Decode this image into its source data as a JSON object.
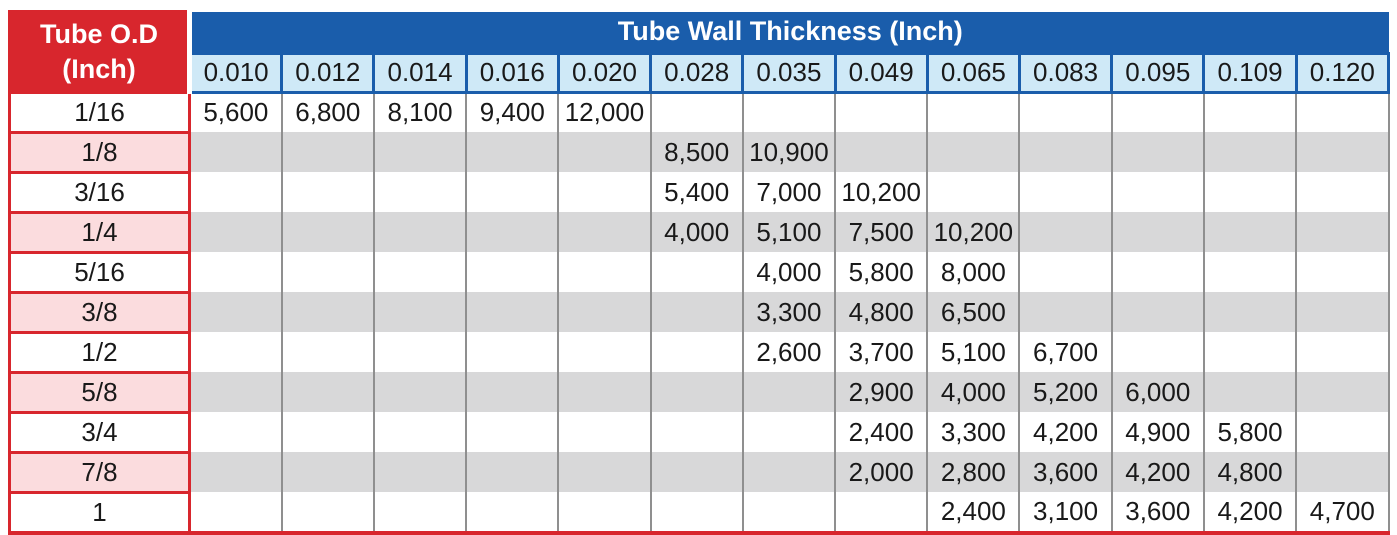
{
  "chart_data": {
    "type": "table",
    "corner_header": {
      "line1": "Tube O.D",
      "line2": "(Inch)"
    },
    "main_header": "Tube Wall Thickness (Inch)",
    "thickness_columns": [
      "0.010",
      "0.012",
      "0.014",
      "0.016",
      "0.020",
      "0.028",
      "0.035",
      "0.049",
      "0.065",
      "0.083",
      "0.095",
      "0.109",
      "0.120"
    ],
    "rows": [
      {
        "od": "1/16",
        "values": [
          "5,600",
          "6,800",
          "8,100",
          "9,400",
          "12,000",
          "",
          "",
          "",
          "",
          "",
          "",
          "",
          ""
        ]
      },
      {
        "od": "1/8",
        "values": [
          "",
          "",
          "",
          "",
          "",
          "8,500",
          "10,900",
          "",
          "",
          "",
          "",
          "",
          ""
        ]
      },
      {
        "od": "3/16",
        "values": [
          "",
          "",
          "",
          "",
          "",
          "5,400",
          "7,000",
          "10,200",
          "",
          "",
          "",
          "",
          ""
        ]
      },
      {
        "od": "1/4",
        "values": [
          "",
          "",
          "",
          "",
          "",
          "4,000",
          "5,100",
          "7,500",
          "10,200",
          "",
          "",
          "",
          ""
        ]
      },
      {
        "od": "5/16",
        "values": [
          "",
          "",
          "",
          "",
          "",
          "",
          "4,000",
          "5,800",
          "8,000",
          "",
          "",
          "",
          ""
        ]
      },
      {
        "od": "3/8",
        "values": [
          "",
          "",
          "",
          "",
          "",
          "",
          "3,300",
          "4,800",
          "6,500",
          "",
          "",
          "",
          ""
        ]
      },
      {
        "od": "1/2",
        "values": [
          "",
          "",
          "",
          "",
          "",
          "",
          "2,600",
          "3,700",
          "5,100",
          "6,700",
          "",
          "",
          ""
        ]
      },
      {
        "od": "5/8",
        "values": [
          "",
          "",
          "",
          "",
          "",
          "",
          "",
          "2,900",
          "4,000",
          "5,200",
          "6,000",
          "",
          ""
        ]
      },
      {
        "od": "3/4",
        "values": [
          "",
          "",
          "",
          "",
          "",
          "",
          "",
          "2,400",
          "3,300",
          "4,200",
          "4,900",
          "5,800",
          ""
        ]
      },
      {
        "od": "7/8",
        "values": [
          "",
          "",
          "",
          "",
          "",
          "",
          "",
          "2,000",
          "2,800",
          "3,600",
          "4,200",
          "4,800",
          ""
        ]
      },
      {
        "od": "1",
        "values": [
          "",
          "",
          "",
          "",
          "",
          "",
          "",
          "",
          "2,400",
          "3,100",
          "3,600",
          "4,200",
          "4,700"
        ]
      }
    ]
  },
  "colors": {
    "red": "#d8262d",
    "blue": "#1a5dab",
    "lightblue": "#cfe9f7",
    "pink": "#fbdcde",
    "stripe": "#d8d8d9",
    "bordergray": "#8f8f8f",
    "ink": "#191919",
    "headertext": "#ffffff"
  }
}
